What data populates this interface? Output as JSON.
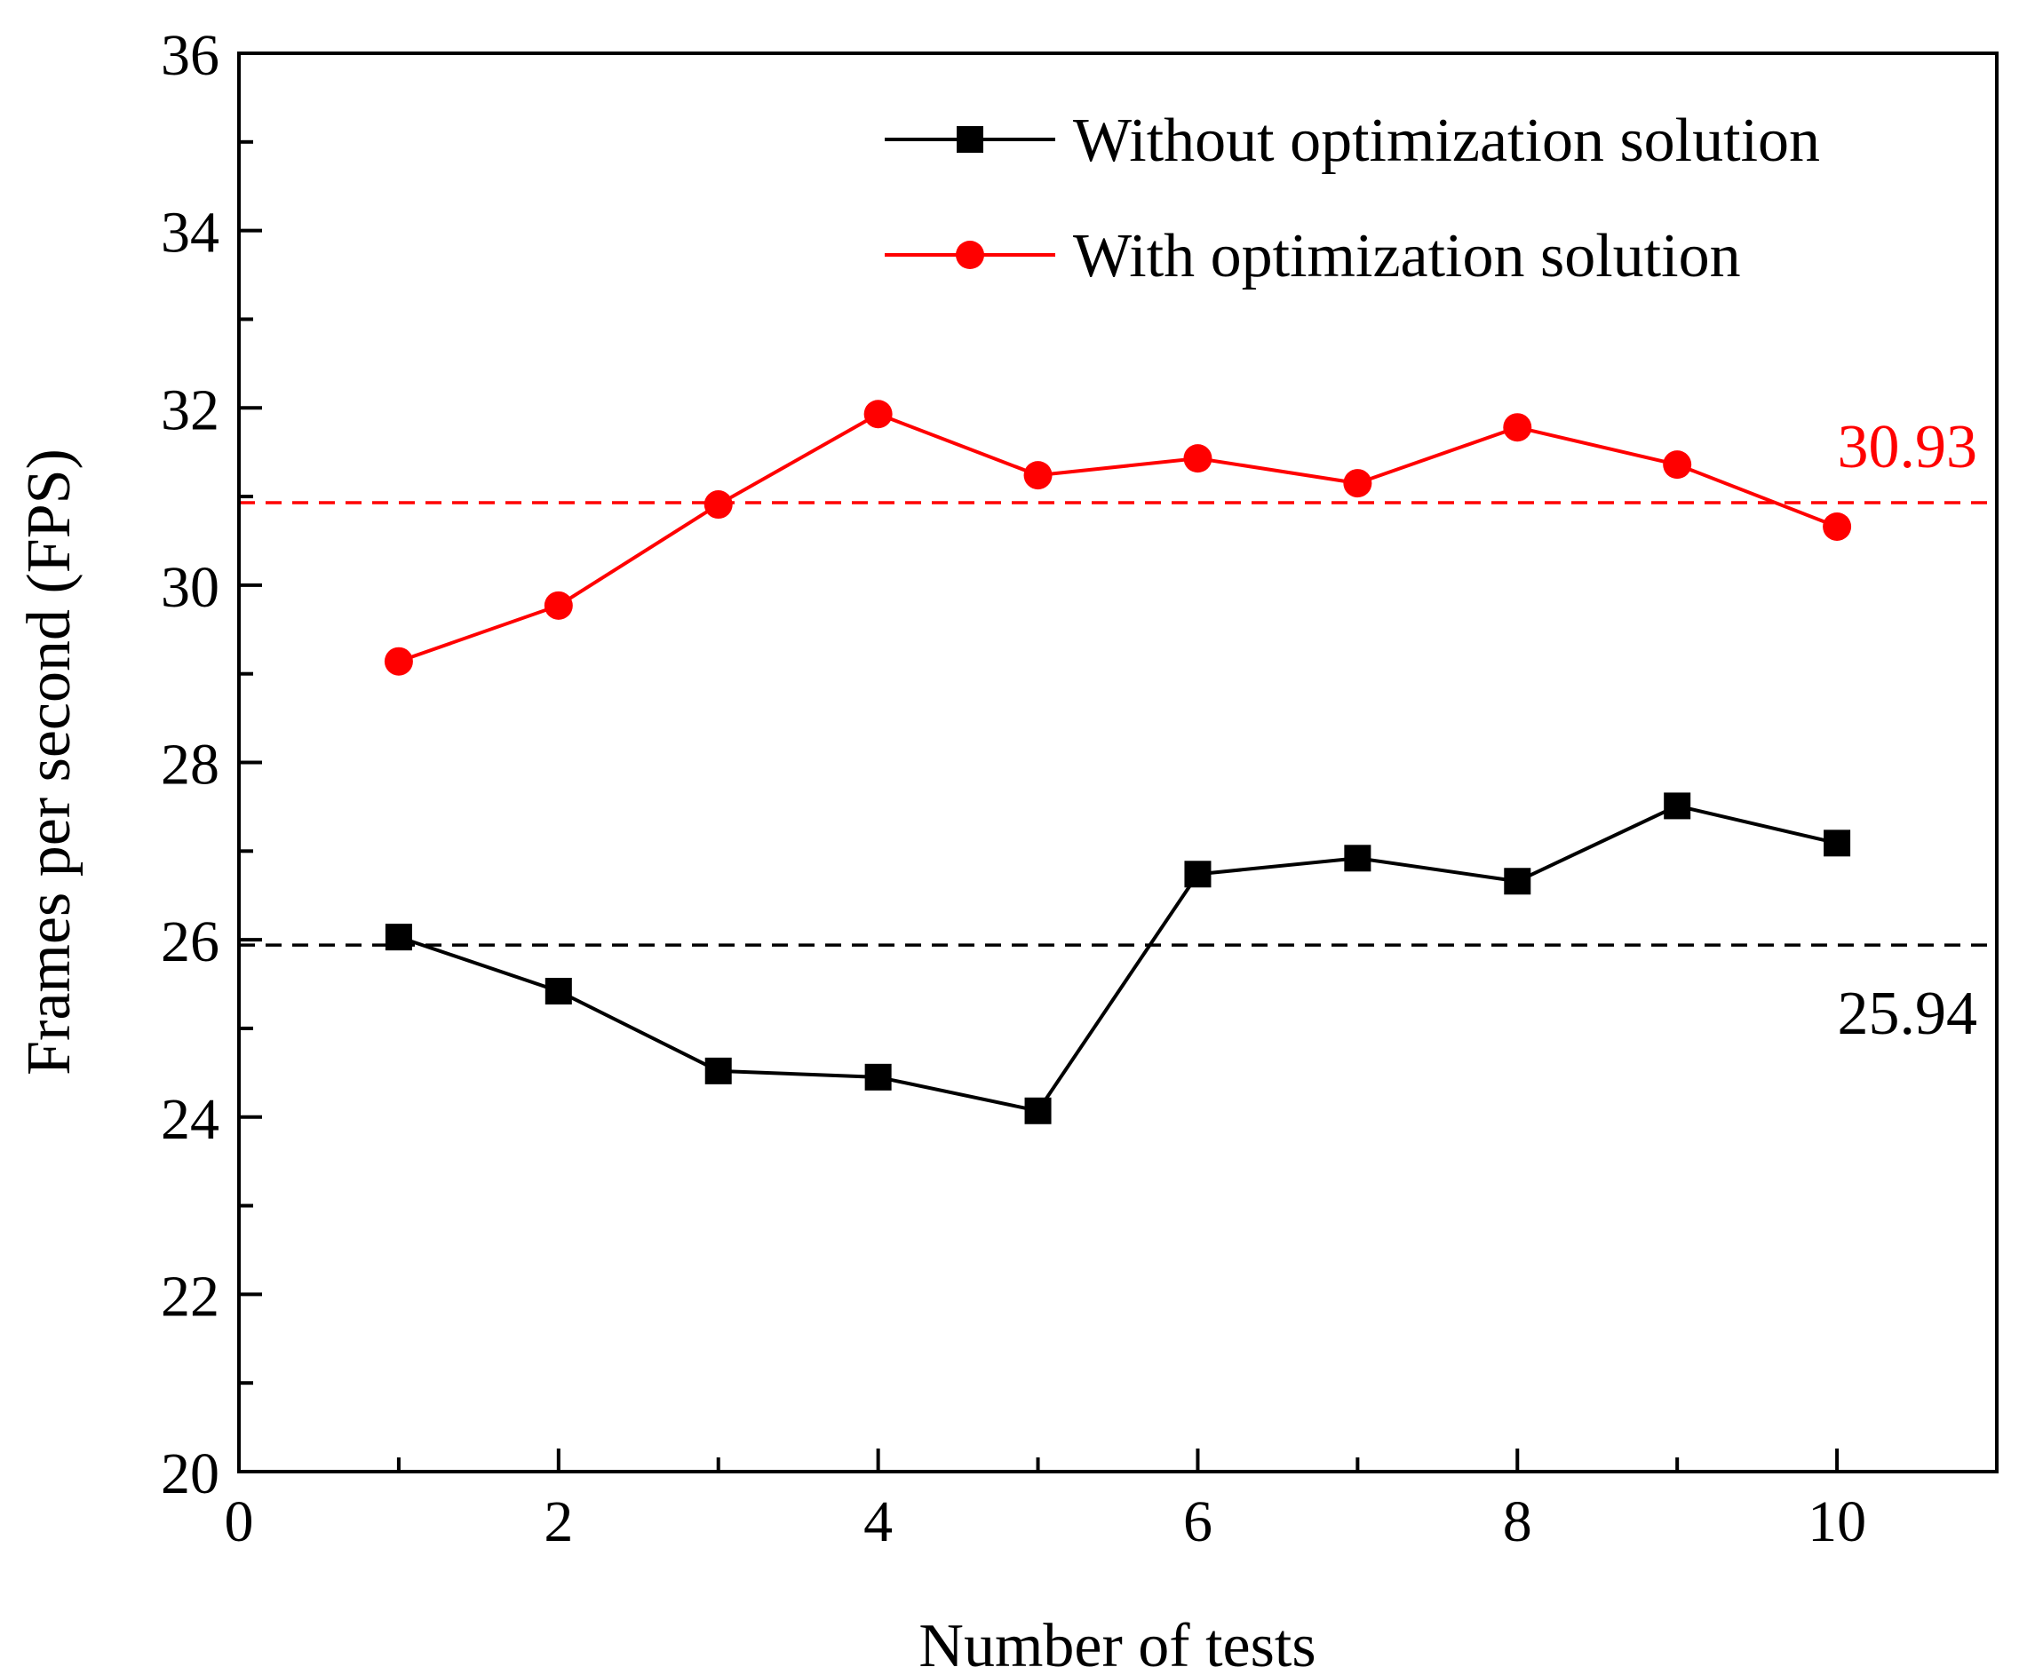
{
  "chart_data": {
    "type": "line",
    "title": "",
    "xlabel": "Number of tests",
    "ylabel": "Frames per second (FPS)",
    "xlim": [
      0,
      11
    ],
    "ylim": [
      20,
      36
    ],
    "xticks": [
      0,
      2,
      4,
      6,
      8,
      10
    ],
    "yticks": [
      20,
      22,
      24,
      26,
      28,
      30,
      32,
      34,
      36
    ],
    "x": [
      1,
      2,
      3,
      4,
      5,
      6,
      7,
      8,
      9,
      10
    ],
    "series": [
      {
        "name": "Without optimization solution",
        "color": "#000000",
        "marker": "square",
        "values": [
          26.03,
          25.42,
          24.52,
          24.45,
          24.07,
          26.74,
          26.92,
          26.66,
          27.51,
          27.09
        ]
      },
      {
        "name": "With optimization solution",
        "color": "#ff0000",
        "marker": "circle",
        "values": [
          29.14,
          29.77,
          30.91,
          31.93,
          31.24,
          31.43,
          31.15,
          31.78,
          31.36,
          30.66
        ]
      }
    ],
    "reference_lines": [
      {
        "value": 30.93,
        "label": "30.93",
        "color": "#ff0000",
        "style": "dashed"
      },
      {
        "value": 25.94,
        "label": "25.94",
        "color": "#000000",
        "style": "dashed"
      }
    ],
    "legend": "top-right",
    "grid": false
  }
}
